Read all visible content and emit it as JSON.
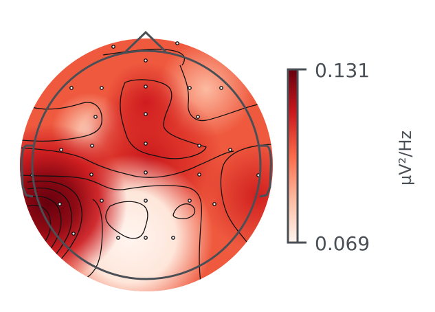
{
  "colorbar": {
    "max_label": "0.131",
    "min_label": "0.069",
    "unit": "µV²/Hz",
    "colors": [
      "#fff5f0",
      "#fcbba1",
      "#fb6a4a",
      "#cb181d",
      "#67000d"
    ]
  },
  "colors": {
    "outline": "#4a4f55",
    "contour": "#111111",
    "sensor": "#111111",
    "text": "#4a4f55"
  },
  "sensor_count": 30
}
